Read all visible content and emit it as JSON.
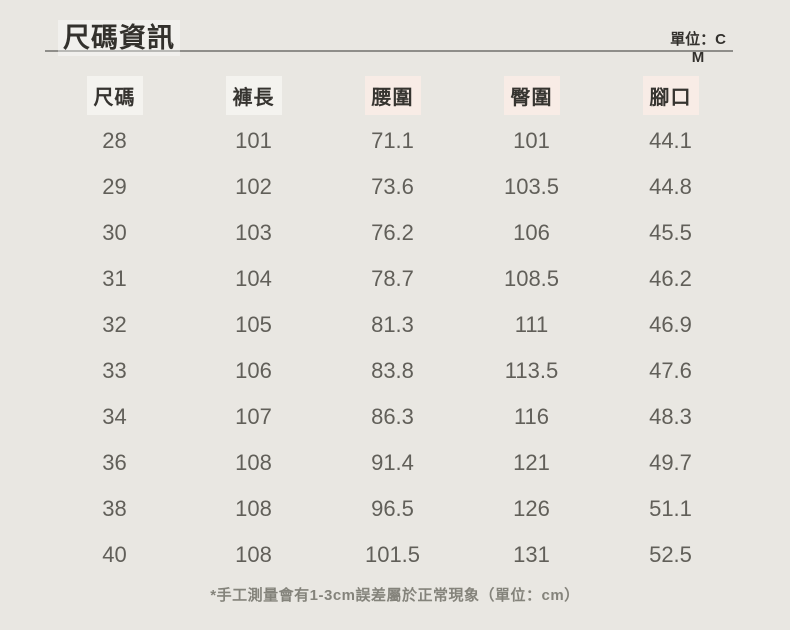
{
  "header": {
    "title": "尺碼資訊",
    "unit_label": "單位：CM"
  },
  "table": {
    "headers": [
      "尺碼",
      "褲長",
      "腰圍",
      "臀圍",
      "腳口"
    ],
    "rows": [
      [
        "28",
        "101",
        "71.1",
        "101",
        "44.1"
      ],
      [
        "29",
        "102",
        "73.6",
        "103.5",
        "44.8"
      ],
      [
        "30",
        "103",
        "76.2",
        "106",
        "45.5"
      ],
      [
        "31",
        "104",
        "78.7",
        "108.5",
        "46.2"
      ],
      [
        "32",
        "105",
        "81.3",
        "111",
        "46.9"
      ],
      [
        "33",
        "106",
        "83.8",
        "113.5",
        "47.6"
      ],
      [
        "34",
        "107",
        "86.3",
        "116",
        "48.3"
      ],
      [
        "36",
        "108",
        "91.4",
        "121",
        "49.7"
      ],
      [
        "38",
        "108",
        "96.5",
        "126",
        "51.1"
      ],
      [
        "40",
        "108",
        "101.5",
        "131",
        "52.5"
      ]
    ]
  },
  "footer": {
    "note": "*手工測量會有1-3cm誤差屬於正常現象（單位：cm）"
  },
  "colors": {
    "page_background": "#e9e7e2",
    "divider": "#8f8e8a",
    "header_text": "#363430",
    "data_text": "#615f59",
    "note_text": "#84837b",
    "header_highlight_neutral": "#f4f3ef",
    "header_highlight_pink": "#f8ece6"
  },
  "chart_data": {
    "type": "table",
    "title": "尺碼資訊",
    "unit": "CM",
    "columns": [
      "尺碼",
      "褲長",
      "腰圍",
      "臀圍",
      "腳口"
    ],
    "rows": [
      [
        28,
        101,
        71.1,
        101,
        44.1
      ],
      [
        29,
        102,
        73.6,
        103.5,
        44.8
      ],
      [
        30,
        103,
        76.2,
        106,
        45.5
      ],
      [
        31,
        104,
        78.7,
        108.5,
        46.2
      ],
      [
        32,
        105,
        81.3,
        111,
        46.9
      ],
      [
        33,
        106,
        83.8,
        113.5,
        47.6
      ],
      [
        34,
        107,
        86.3,
        116,
        48.3
      ],
      [
        36,
        108,
        91.4,
        121,
        49.7
      ],
      [
        38,
        108,
        96.5,
        126,
        51.1
      ],
      [
        40,
        108,
        101.5,
        131,
        52.5
      ]
    ],
    "note": "*手工測量會有1-3cm誤差屬於正常現象（單位：cm）"
  }
}
